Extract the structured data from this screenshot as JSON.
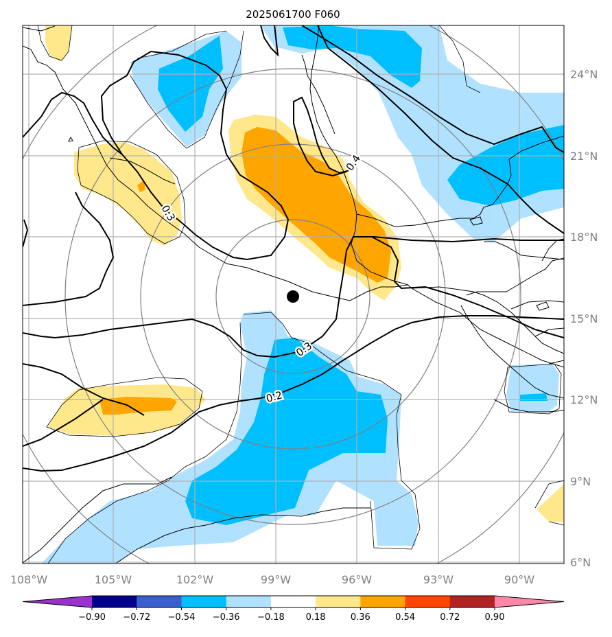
{
  "title": "2025061700 F060",
  "map": {
    "lon_labels": [
      "108°W",
      "105°W",
      "102°W",
      "99°W",
      "96°W",
      "93°W",
      "90°W"
    ],
    "lat_labels": [
      "24°N",
      "21°N",
      "18°N",
      "15°N",
      "12°N",
      "9°N",
      "6°N"
    ],
    "contour_labels": [
      "0.4",
      "0.3",
      "0.3",
      "0.2"
    ],
    "storm_center": {
      "lon": -98.3,
      "lat": 15.8
    },
    "grid_color": "#b0b0b0",
    "range_ring_color": "#808080"
  },
  "colorbar": {
    "tick_labels": [
      "−0.90",
      "−0.72",
      "−0.54",
      "−0.36",
      "−0.18",
      "0.18",
      "0.36",
      "0.54",
      "0.72",
      "0.90"
    ],
    "colors": [
      "#9932cc",
      "#00008b",
      "#3a5fcd",
      "#00bfff",
      "#b0e2ff",
      "#ffffff",
      "#ffe88c",
      "#ffa500",
      "#ff4500",
      "#b22222",
      "#ff88aa"
    ]
  }
}
